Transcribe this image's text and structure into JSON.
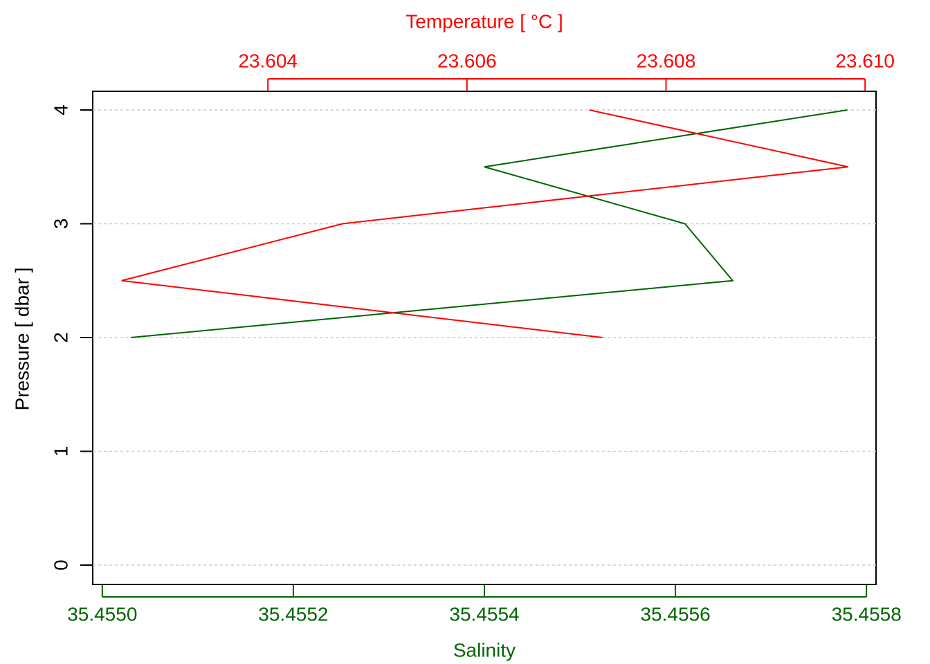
{
  "chart_data": {
    "type": "line",
    "ylabel": "Pressure [ dbar ]",
    "xlabel": "Salinity",
    "x2label": "Temperature [ °C ]",
    "y": [
      2,
      2.5,
      3,
      3.5,
      4
    ],
    "ylim": [
      4.164,
      -0.17
    ],
    "yticks": [
      0,
      1,
      2,
      3,
      4
    ],
    "xlim": [
      35.45499,
      35.45581
    ],
    "xticks": [
      {
        "value": 35.455,
        "label": "35.4550"
      },
      35.4552,
      35.4554,
      35.4556,
      35.4558
    ],
    "x2lim": [
      23.60224,
      23.61011
    ],
    "x2ticks": [
      23.604,
      23.606,
      23.608,
      {
        "value": 23.61,
        "label": "23.610"
      }
    ],
    "xcolor": "#006400",
    "x2color": "#ff0000",
    "grid": true,
    "series": [
      {
        "axis": "x",
        "color": "#006400",
        "values": [
          35.45503,
          35.45566,
          35.45561,
          35.4554,
          35.45578
        ]
      },
      {
        "axis": "x2",
        "color": "#ff0000",
        "values": [
          23.60736,
          23.60253,
          23.60475,
          23.60983,
          23.60723
        ]
      }
    ]
  }
}
